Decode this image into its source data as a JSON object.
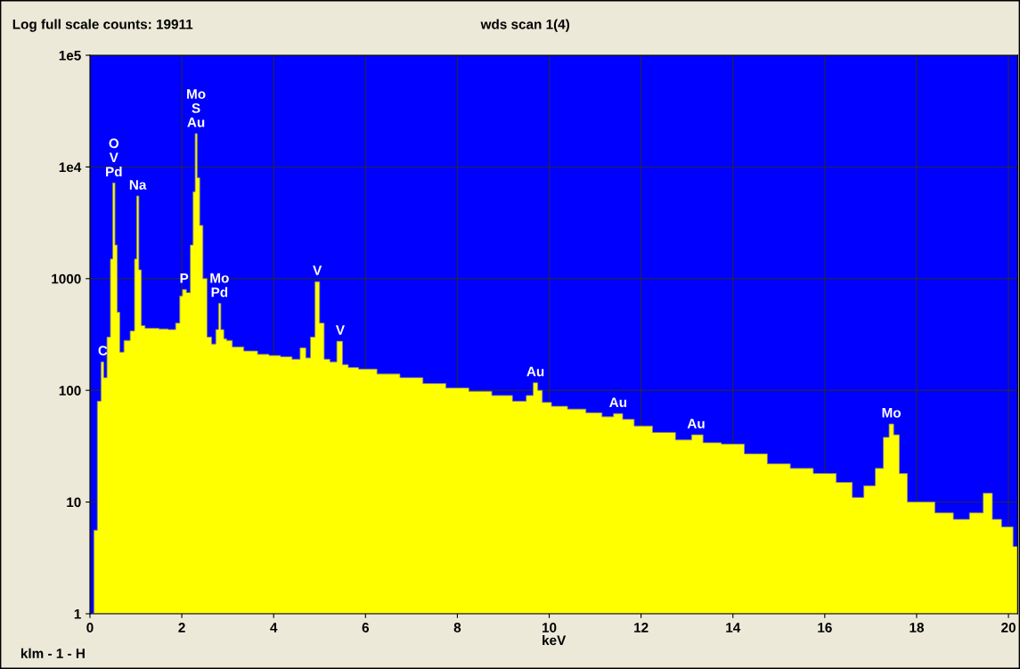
{
  "chart_data": {
    "type": "area",
    "title": "wds scan 1(4)",
    "xlabel": "keV",
    "annotations": [
      "Log full scale counts: 19911",
      "klm - 1 - H",
      {
        "text": "C",
        "x": 0.28,
        "y": 180
      },
      {
        "text": "O\nV\nPd",
        "x": 0.52,
        "y": 7200
      },
      {
        "text": "Na",
        "x": 1.04,
        "y": 5500
      },
      {
        "text": "Mo\nS\nAu",
        "x": 2.31,
        "y": 19900
      },
      {
        "text": "P",
        "x": 2.05,
        "y": 800
      },
      {
        "text": "Mo\nPd",
        "x": 2.82,
        "y": 600
      },
      {
        "text": "V",
        "x": 4.95,
        "y": 940
      },
      {
        "text": "V",
        "x": 5.45,
        "y": 275
      },
      {
        "text": "Au",
        "x": 9.7,
        "y": 117
      },
      {
        "text": "Au",
        "x": 11.5,
        "y": 62
      },
      {
        "text": "Au",
        "x": 13.2,
        "y": 40
      },
      {
        "text": "Mo",
        "x": 17.45,
        "y": 50
      }
    ],
    "series": [
      {
        "color": "#ffff00",
        "x": [
          0.05,
          0.12,
          0.2,
          0.28,
          0.32,
          0.42,
          0.47,
          0.52,
          0.57,
          0.62,
          0.68,
          0.8,
          0.95,
          0.99,
          1.04,
          1.09,
          1.15,
          1.25,
          1.4,
          1.6,
          1.8,
          1.93,
          1.98,
          2.05,
          2.15,
          2.22,
          2.27,
          2.31,
          2.36,
          2.42,
          2.5,
          2.6,
          2.7,
          2.78,
          2.82,
          2.88,
          2.95,
          3.0,
          3.2,
          3.5,
          3.8,
          4.0,
          4.3,
          4.5,
          4.65,
          4.75,
          4.85,
          4.95,
          5.05,
          5.15,
          5.3,
          5.45,
          5.55,
          5.7,
          6.0,
          6.5,
          7.0,
          7.5,
          8.0,
          8.5,
          9.0,
          9.4,
          9.6,
          9.7,
          9.8,
          9.9,
          10.2,
          10.6,
          11.0,
          11.3,
          11.5,
          11.7,
          12.0,
          12.5,
          13.0,
          13.2,
          13.5,
          14.0,
          14.5,
          15.0,
          15.5,
          16.0,
          16.5,
          16.7,
          17.0,
          17.2,
          17.35,
          17.45,
          17.55,
          17.7,
          17.9,
          18.2,
          18.6,
          19.0,
          19.3,
          19.6,
          19.7,
          20.0,
          20.2
        ],
        "values": [
          1,
          5.6,
          80,
          180,
          130,
          300,
          1500,
          7200,
          2000,
          500,
          220,
          280,
          340,
          1500,
          5500,
          1200,
          380,
          360,
          360,
          355,
          350,
          400,
          700,
          800,
          750,
          2000,
          6000,
          19900,
          8000,
          3000,
          1000,
          300,
          260,
          350,
          600,
          350,
          290,
          280,
          245,
          225,
          210,
          205,
          200,
          190,
          240,
          195,
          300,
          940,
          400,
          190,
          180,
          275,
          170,
          160,
          155,
          140,
          130,
          115,
          105,
          98,
          90,
          80,
          90,
          117,
          100,
          78,
          72,
          68,
          63,
          58,
          62,
          55,
          48,
          42,
          36,
          40,
          34,
          33,
          27,
          22,
          20,
          18,
          15,
          11,
          14,
          20,
          38,
          50,
          40,
          18,
          10,
          10,
          8,
          7,
          8,
          12,
          7,
          6,
          4
        ]
      }
    ],
    "xlim": [
      0,
      20.2
    ],
    "xticks": [
      0,
      2,
      4,
      6,
      8,
      10,
      12,
      14,
      16,
      18,
      20
    ],
    "ylim": [
      1,
      100000
    ],
    "yticks": [
      1,
      10,
      100,
      1000,
      {
        "value": 10000,
        "label": "1e4"
      },
      {
        "value": 100000,
        "label": "1e5"
      }
    ],
    "log": true,
    "grid": true
  }
}
